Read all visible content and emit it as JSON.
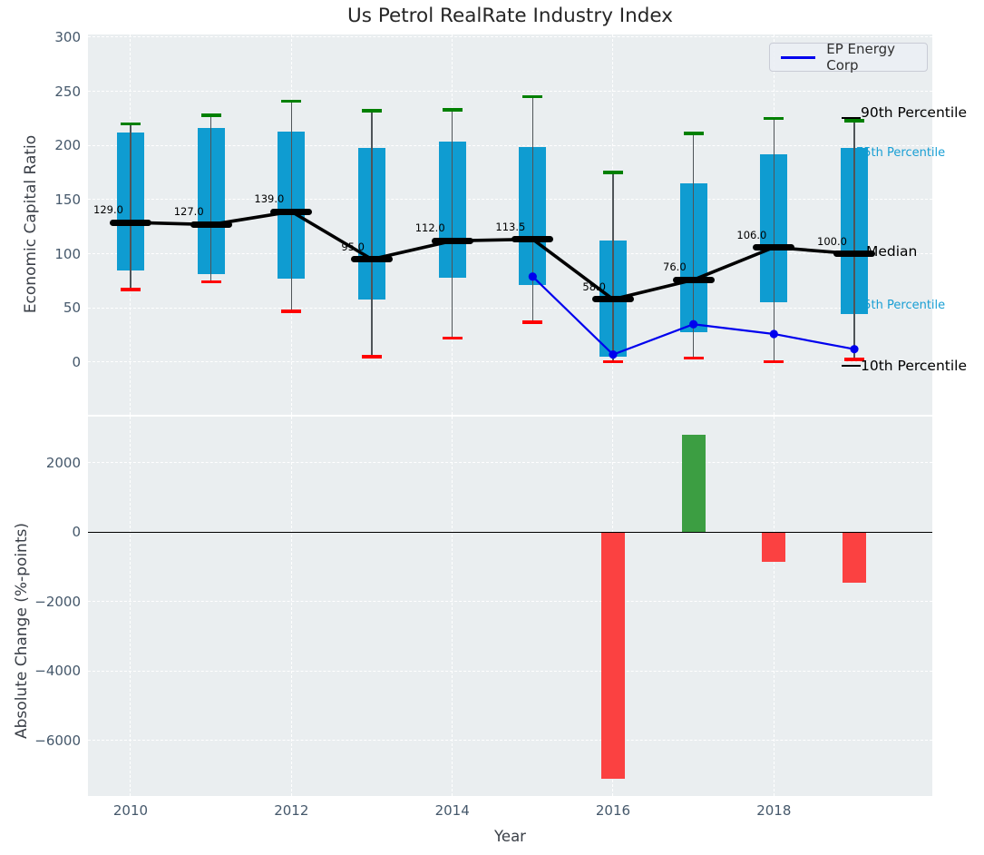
{
  "title": "Us Petrol RealRate Industry Index",
  "legend": {
    "ep_energy": "EP Energy Corp"
  },
  "axis_labels": {
    "top_y": "Economic Capital Ratio",
    "bottom_y": "Absolute Change (%-points)",
    "x": "Year"
  },
  "annotations": {
    "p90": "90th Percentile",
    "p75": "75th Percentile",
    "median": "Median",
    "p25": "25th Percentile",
    "p10": "10th Percentile"
  },
  "colors": {
    "box_fill": "#0f9cd1",
    "cap_90th": "#008000",
    "cap_10th": "#fe0000",
    "median_line": "#000000",
    "ep_line": "#0000ee",
    "bar_positive": "#3c9e42",
    "bar_negative": "#fb4141",
    "axes_background": "#eaeef0",
    "grid": "#ffffff",
    "tick_text": "#45586b",
    "teal_annotation_text": "#199fd4"
  },
  "chart_data": [
    {
      "type": "box-whisker-with-median-line",
      "title": "Us Petrol RealRate Industry Index",
      "ylabel": "Economic Capital Ratio",
      "x": [
        2010,
        2011,
        2012,
        2013,
        2014,
        2015,
        2016,
        2017,
        2018,
        2019
      ],
      "xticks": [
        2010,
        2012,
        2014,
        2016,
        2018
      ],
      "yticks": [
        0,
        50,
        100,
        150,
        200,
        250,
        300
      ],
      "ylim": [
        -48.6,
        302.5
      ],
      "xlim": [
        2009.47,
        2019.97
      ],
      "grid": true,
      "legend_position": "upper right",
      "series": {
        "p90": [
          220,
          228,
          241,
          232,
          233,
          245,
          175,
          211,
          225,
          223
        ],
        "p75": [
          212,
          216,
          213,
          198,
          204,
          199,
          112,
          165,
          192,
          198
        ],
        "median": [
          129,
          127,
          139,
          95,
          112,
          113.5,
          58,
          76,
          106,
          100
        ],
        "p25": [
          85,
          81,
          77,
          58,
          78,
          71,
          5,
          28,
          55,
          44
        ],
        "p10": [
          67,
          74,
          47,
          5,
          22,
          37,
          0.5,
          4,
          0.5,
          2.5
        ]
      },
      "median_value_labels": [
        "129.0",
        "127.0",
        "139.0",
        "95.0",
        "112.0",
        "113.5",
        "58.0",
        "76.0",
        "106.0",
        "100.0"
      ],
      "ep_energy": {
        "name": "EP Energy Corp",
        "x": [
          2015,
          2016,
          2017,
          2018,
          2019
        ],
        "values": [
          79,
          7,
          35,
          26,
          12
        ]
      }
    },
    {
      "type": "bar",
      "ylabel": "Absolute Change (%-points)",
      "xlabel": "Year",
      "x": [
        2016,
        2017,
        2018,
        2019
      ],
      "values": [
        -7100,
        2800,
        -850,
        -1450
      ],
      "xticks": [
        2010,
        2012,
        2014,
        2016,
        2018
      ],
      "yticks": [
        2000,
        0,
        -2000,
        -4000,
        -6000
      ],
      "ylim": [
        -7595,
        3333
      ],
      "xlim": [
        2009.47,
        2019.97
      ],
      "zero_line": true,
      "grid": true
    }
  ]
}
